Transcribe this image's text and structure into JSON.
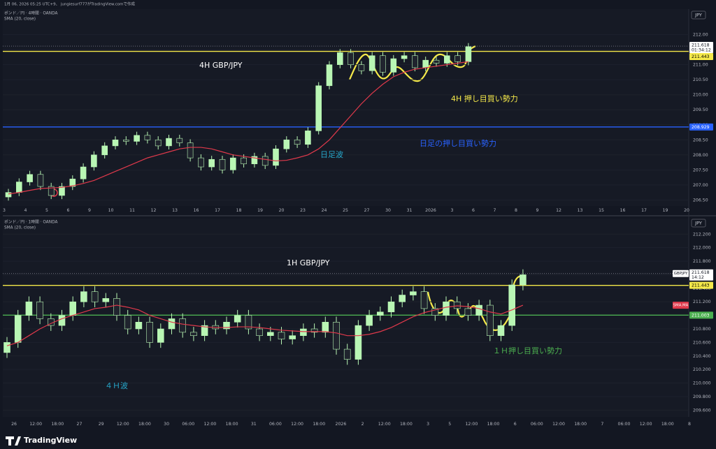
{
  "header": {
    "caption": "1月 06, 2026 05:25 UTC+9、 jungiesurf777がTradingView.comで作成"
  },
  "charts": [
    {
      "symbol": "ポンド／円 · 4時間 · OANDA",
      "indicator": "SMA (20, close)",
      "currency": "JPY",
      "annotations": [
        {
          "text": "4H GBP/JPY",
          "color": "#ffffff"
        },
        {
          "text": "4H 押し目買い勢力",
          "color": "#f5e94a"
        },
        {
          "text": "日足の押し目買い勢力",
          "color": "#2962ff"
        },
        {
          "text": "日足波",
          "color": "#26a6c9"
        }
      ],
      "ylim": [
        206.3,
        212.85
      ],
      "yticks": [
        {
          "value": 206.5,
          "label": "206.50"
        },
        {
          "value": 207,
          "label": "207.00"
        },
        {
          "value": 207.5,
          "label": "207.50"
        },
        {
          "value": 208,
          "label": "208.00"
        },
        {
          "value": 208.5,
          "label": "208.50"
        },
        {
          "value": 209,
          "label": "209.00"
        },
        {
          "value": 209.5,
          "label": "209.50"
        },
        {
          "value": 210,
          "label": "210.00"
        },
        {
          "value": 210.5,
          "label": "210.50"
        },
        {
          "value": 211,
          "label": "211.00"
        },
        {
          "value": 211.5,
          "label": "211.50"
        },
        {
          "value": 212,
          "label": "212.00"
        }
      ],
      "xlabels": [
        "3",
        "4",
        "5",
        "6",
        "9",
        "10",
        "11",
        "12",
        "13",
        "16",
        "17",
        "18",
        "19",
        "20",
        "23",
        "24",
        "25",
        "27",
        "30",
        "31",
        "2026",
        "3",
        "6",
        "7",
        "8",
        "9",
        "12",
        "13",
        "15",
        "16",
        "17",
        "19",
        "20"
      ],
      "up_color": "#b9f6b4",
      "down_color": "#20242e",
      "sma_color": "#e0394b",
      "open": [
        206.6,
        206.75,
        207.1,
        207.35,
        206.95,
        206.65,
        206.95,
        207.2,
        207.6,
        208.0,
        208.3,
        208.5,
        208.45,
        208.65,
        208.5,
        208.3,
        208.55,
        208.4,
        207.9,
        207.6,
        207.85,
        207.5,
        207.9,
        207.7,
        207.95,
        207.65,
        208.2,
        208.5,
        208.35,
        208.8,
        210.3,
        211.0,
        211.4,
        211.0,
        210.8,
        211.3,
        210.75,
        211.2,
        211.3,
        210.9,
        211.15,
        211.05,
        211.3,
        211.1
      ],
      "high": [
        206.87,
        207.22,
        207.47,
        207.47,
        207.07,
        207.07,
        207.32,
        207.72,
        208.12,
        208.42,
        208.62,
        208.62,
        208.77,
        208.77,
        208.62,
        208.67,
        208.67,
        208.52,
        208.02,
        207.97,
        207.97,
        208.02,
        208.02,
        208.07,
        208.07,
        208.32,
        208.62,
        208.62,
        208.92,
        210.42,
        211.12,
        211.52,
        211.52,
        211.12,
        211.42,
        211.42,
        211.32,
        211.42,
        211.42,
        211.27,
        211.27,
        211.42,
        211.42,
        211.72
      ],
      "low": [
        206.48,
        206.63,
        206.98,
        206.83,
        206.53,
        206.53,
        206.83,
        207.08,
        207.48,
        207.88,
        208.18,
        208.33,
        208.33,
        208.38,
        208.18,
        208.18,
        208.28,
        207.78,
        207.48,
        207.48,
        207.38,
        207.38,
        207.58,
        207.58,
        207.53,
        207.53,
        208.08,
        208.23,
        208.23,
        208.68,
        210.18,
        210.88,
        210.88,
        210.68,
        210.68,
        210.63,
        210.63,
        211.08,
        210.78,
        210.78,
        210.93,
        210.93,
        210.98,
        210.98
      ],
      "close": [
        206.75,
        207.1,
        207.35,
        206.95,
        206.65,
        206.95,
        207.2,
        207.6,
        208.0,
        208.3,
        208.5,
        208.45,
        208.65,
        208.5,
        208.3,
        208.55,
        208.4,
        207.9,
        207.6,
        207.85,
        207.5,
        207.9,
        207.7,
        207.95,
        207.65,
        208.2,
        208.5,
        208.35,
        208.8,
        210.3,
        211.0,
        211.4,
        211.0,
        210.8,
        211.3,
        210.75,
        211.2,
        211.3,
        210.9,
        211.15,
        211.05,
        211.3,
        211.1,
        211.6
      ],
      "sma": [
        206.7,
        206.75,
        206.82,
        206.88,
        206.9,
        206.92,
        206.97,
        207.05,
        207.15,
        207.3,
        207.45,
        207.6,
        207.75,
        207.9,
        208.0,
        208.1,
        208.2,
        208.25,
        208.25,
        208.2,
        208.1,
        208.0,
        207.95,
        207.9,
        207.85,
        207.8,
        207.82,
        207.9,
        208.0,
        208.2,
        208.5,
        208.9,
        209.3,
        209.7,
        210.05,
        210.35,
        210.6,
        210.75,
        210.85,
        210.9,
        210.95,
        211.0,
        211.05,
        211.1
      ],
      "levels": [
        {
          "value": 211.443,
          "color": "#f5e94a",
          "text_color": "#000000"
        },
        {
          "value": 208.929,
          "color": "#2962ff",
          "text_color": "#ffffff"
        }
      ],
      "price": {
        "value": 211.618,
        "countdown": "01:34:12"
      }
    },
    {
      "symbol": "ポンド／円 · 1時間 · OANDA",
      "indicator": "SMA (20, close)",
      "currency": "JPY",
      "annotations": [
        {
          "text": "1H GBP/JPY",
          "color": "#ffffff"
        },
        {
          "text": "１Ｈ押し目買い勢力",
          "color": "#4caf50"
        },
        {
          "text": "４Ｈ波",
          "color": "#26a6c9"
        }
      ],
      "ylim": [
        209.5,
        212.43
      ],
      "yticks": [
        {
          "value": 209.6,
          "label": "209.600"
        },
        {
          "value": 209.8,
          "label": "209.800"
        },
        {
          "value": 210,
          "label": "210.000"
        },
        {
          "value": 210.2,
          "label": "210.200"
        },
        {
          "value": 210.4,
          "label": "210.400"
        },
        {
          "value": 210.6,
          "label": "210.600"
        },
        {
          "value": 210.8,
          "label": "210.800"
        },
        {
          "value": 211,
          "label": "211.000"
        },
        {
          "value": 211.2,
          "label": "211.200"
        },
        {
          "value": 211.4,
          "label": "211.400"
        },
        {
          "value": 211.6,
          "label": "211.600"
        },
        {
          "value": 211.8,
          "label": "211.800"
        },
        {
          "value": 212,
          "label": "212.000"
        },
        {
          "value": 212.2,
          "label": "212.200"
        }
      ],
      "xlabels": [
        "26",
        "12:00",
        "18:00",
        "27",
        "29",
        "12:00",
        "18:00",
        "30",
        "06:00",
        "12:00",
        "18:00",
        "31",
        "06:00",
        "12:00",
        "18:00",
        "2026",
        "2",
        "12:00",
        "18:00",
        "3",
        "5",
        "12:00",
        "18:00",
        "6",
        "06:00",
        "12:00",
        "18:00",
        "7",
        "06:00",
        "12:00",
        "18:00",
        "8"
      ],
      "up_color": "#b9f6b4",
      "down_color": "#20242e",
      "sma_color": "#e0394b",
      "open": [
        210.45,
        210.6,
        211.0,
        211.2,
        210.95,
        210.85,
        211.0,
        211.2,
        211.35,
        211.2,
        211.25,
        211.0,
        210.8,
        210.9,
        210.6,
        210.8,
        210.95,
        210.75,
        210.7,
        210.85,
        210.8,
        210.9,
        211.0,
        210.8,
        210.7,
        210.75,
        210.65,
        210.7,
        210.8,
        210.75,
        210.9,
        210.5,
        210.35,
        210.85,
        211.0,
        211.05,
        211.2,
        211.3,
        211.35,
        211.1,
        211.0,
        211.2,
        211.1,
        211.0,
        211.15,
        210.7,
        210.85,
        211.45
      ],
      "high": [
        210.68,
        211.08,
        211.28,
        211.28,
        211.03,
        211.08,
        211.28,
        211.43,
        211.43,
        211.33,
        211.33,
        211.08,
        210.98,
        210.98,
        210.88,
        211.03,
        211.03,
        210.83,
        210.93,
        210.93,
        210.98,
        211.08,
        211.08,
        210.88,
        210.83,
        210.83,
        210.78,
        210.88,
        210.88,
        210.98,
        210.98,
        210.58,
        210.93,
        211.08,
        211.13,
        211.28,
        211.38,
        211.43,
        211.43,
        211.18,
        211.28,
        211.28,
        211.18,
        211.23,
        211.23,
        210.93,
        211.53,
        211.68
      ],
      "low": [
        210.37,
        210.52,
        210.92,
        210.87,
        210.77,
        210.77,
        210.92,
        211.12,
        211.12,
        211.12,
        210.92,
        210.72,
        210.72,
        210.52,
        210.52,
        210.72,
        210.67,
        210.62,
        210.62,
        210.72,
        210.72,
        210.82,
        210.72,
        210.62,
        210.62,
        210.57,
        210.57,
        210.62,
        210.67,
        210.67,
        210.42,
        210.27,
        210.27,
        210.77,
        210.92,
        210.97,
        211.12,
        211.22,
        211.02,
        210.92,
        210.92,
        211.02,
        210.92,
        210.92,
        210.62,
        210.62,
        210.77,
        211.37
      ],
      "close": [
        210.6,
        211.0,
        211.2,
        210.95,
        210.85,
        211.0,
        211.2,
        211.35,
        211.2,
        211.25,
        211.0,
        210.8,
        210.9,
        210.6,
        210.8,
        210.95,
        210.75,
        210.7,
        210.85,
        210.8,
        210.9,
        211.0,
        210.8,
        210.7,
        210.75,
        210.65,
        210.7,
        210.8,
        210.75,
        210.9,
        210.5,
        210.35,
        210.85,
        211.0,
        211.05,
        211.2,
        211.3,
        211.35,
        211.1,
        211.0,
        211.2,
        211.1,
        211.0,
        211.15,
        210.7,
        210.85,
        211.45,
        211.6
      ],
      "sma": [
        210.55,
        210.6,
        210.7,
        210.8,
        210.88,
        210.95,
        211.0,
        211.05,
        211.1,
        211.12,
        211.15,
        211.12,
        211.08,
        211.0,
        210.95,
        210.9,
        210.87,
        210.85,
        210.83,
        210.82,
        210.82,
        210.83,
        210.83,
        210.82,
        210.8,
        210.78,
        210.77,
        210.76,
        210.76,
        210.76,
        210.74,
        210.7,
        210.7,
        210.72,
        210.76,
        210.82,
        210.9,
        210.98,
        211.04,
        211.08,
        211.12,
        211.14,
        211.13,
        211.1,
        211.05,
        211.02,
        211.08,
        211.15
      ],
      "sma_label": "SMA.MA",
      "levels": [
        {
          "value": 211.443,
          "color": "#f5e94a",
          "text_color": "#000000"
        },
        {
          "value": 211.003,
          "color": "#4caf50",
          "text_color": "#ffffff"
        }
      ],
      "price": {
        "value": 211.618,
        "countdown": "14:12",
        "tag": "GBPJPY"
      }
    }
  ],
  "footer": {
    "brand": "TradingView"
  }
}
